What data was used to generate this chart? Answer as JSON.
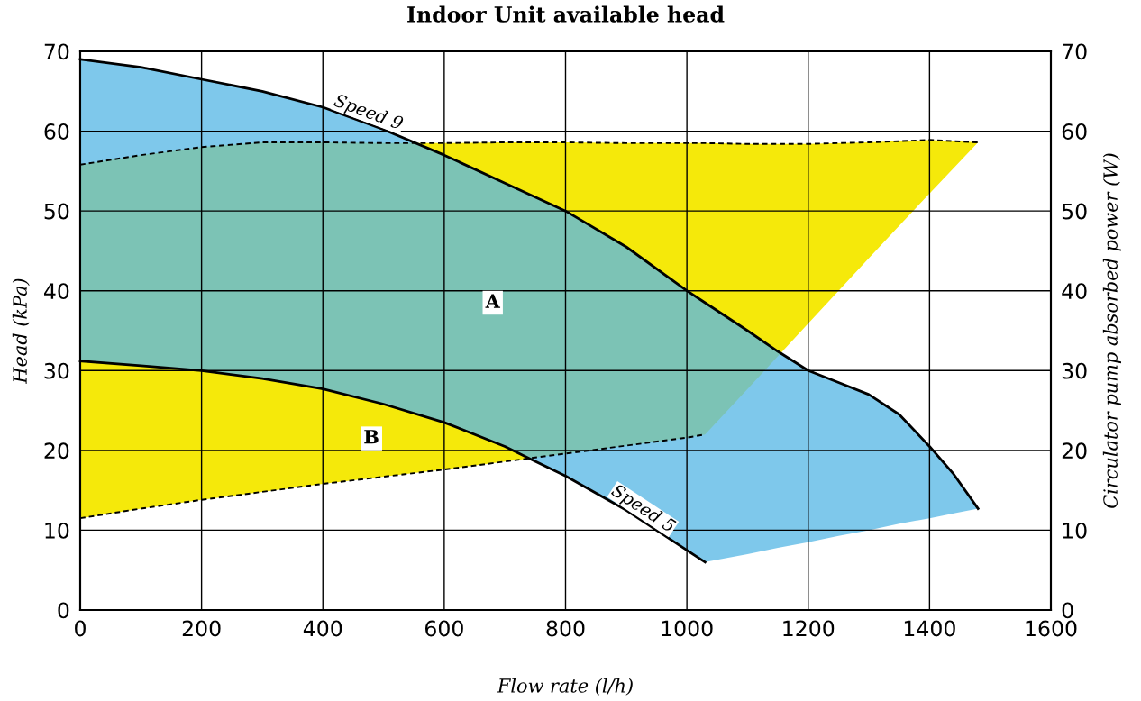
{
  "chart_data": {
    "type": "line",
    "title": "Indoor Unit available head",
    "xlabel": "Flow rate (l/h)",
    "ylabel": "Head (kPa)",
    "y2label": "Circulator pump absorbed power (W)",
    "xlim": [
      0,
      1600
    ],
    "xticks": [
      0,
      200,
      400,
      600,
      800,
      1000,
      1200,
      1400,
      1600
    ],
    "ylim": [
      0,
      70
    ],
    "yticks": [
      0,
      10,
      20,
      30,
      40,
      50,
      60,
      70
    ],
    "y2lim": [
      0,
      70
    ],
    "y2ticks": [
      0,
      10,
      20,
      30,
      40,
      50,
      60,
      70
    ],
    "grid": true,
    "legend": false,
    "annotations": [
      {
        "text": "A",
        "x": 680,
        "y": 38.5
      },
      {
        "text": "B",
        "x": 480,
        "y": 21.5
      }
    ],
    "series": [
      {
        "type": "line",
        "name": "Speed 9",
        "color": "#000000",
        "line_style": "solid",
        "x": [
          0,
          100,
          200,
          300,
          400,
          500,
          600,
          700,
          800,
          900,
          1000,
          1030,
          1100,
          1150,
          1200,
          1250,
          1300,
          1350,
          1400,
          1440,
          1480
        ],
        "values": [
          69,
          68,
          66.5,
          65,
          63,
          60.2,
          57,
          53.5,
          50,
          45.5,
          40,
          38.5,
          35,
          32.4,
          30,
          28.5,
          27,
          24.5,
          20.5,
          17,
          12.7
        ],
        "upper": [
          69,
          68,
          66.5,
          65,
          63,
          60.2,
          57,
          53.5,
          50,
          45.5,
          40,
          38.5,
          35,
          32.4,
          30,
          28.5,
          27,
          24.5,
          20.5,
          17,
          12.7
        ],
        "lower": [
          31.2,
          30.6,
          30,
          29,
          27.7,
          25.8,
          23.5,
          20.5,
          16.8,
          12.5,
          7.5,
          6,
          7.0,
          7.8,
          8.5,
          9.3,
          10.0,
          10.8,
          11.5,
          12.1,
          12.7
        ]
      },
      {
        "type": "line",
        "name": "Speed 5",
        "color": "#000000",
        "line_style": "solid",
        "x": [
          0,
          100,
          200,
          300,
          400,
          500,
          600,
          700,
          740,
          800,
          900,
          1000,
          1030
        ],
        "values": [
          31.2,
          30.6,
          30,
          29,
          27.7,
          25.8,
          23.5,
          20.5,
          19,
          16.8,
          12.5,
          7.5,
          6
        ]
      },
      {
        "type": "line",
        "color": "#000000",
        "line_style": "dashed",
        "axis": "y2",
        "x": [
          0,
          100,
          200,
          300,
          400,
          500,
          600,
          700,
          800,
          900,
          1000,
          1030,
          1100,
          1200,
          1300,
          1400,
          1480
        ],
        "values": [
          55.8,
          57,
          58,
          58.6,
          58.6,
          58.5,
          58.5,
          58.6,
          58.6,
          58.5,
          58.5,
          58.5,
          58.4,
          58.4,
          58.6,
          58.9,
          58.6
        ],
        "upper": [
          55.8,
          57,
          58,
          58.6,
          58.6,
          58.5,
          58.5,
          58.6,
          58.6,
          58.5,
          58.5,
          58.5,
          58.4,
          58.4,
          58.6,
          58.9,
          58.6
        ],
        "lower": [
          11.5,
          12.7,
          13.8,
          14.8,
          15.8,
          16.7,
          17.6,
          18.6,
          19.6,
          20.6,
          21.6,
          22,
          27.7,
          35.9,
          44.1,
          52.2,
          58.6
        ]
      },
      {
        "type": "line",
        "color": "#000000",
        "line_style": "dashed",
        "axis": "y2",
        "x": [
          0,
          100,
          200,
          300,
          400,
          500,
          600,
          700,
          800,
          900,
          1000,
          1030
        ],
        "values": [
          11.5,
          12.7,
          13.8,
          14.8,
          15.8,
          16.7,
          17.6,
          18.6,
          19.6,
          20.6,
          21.6,
          22
        ]
      }
    ]
  }
}
